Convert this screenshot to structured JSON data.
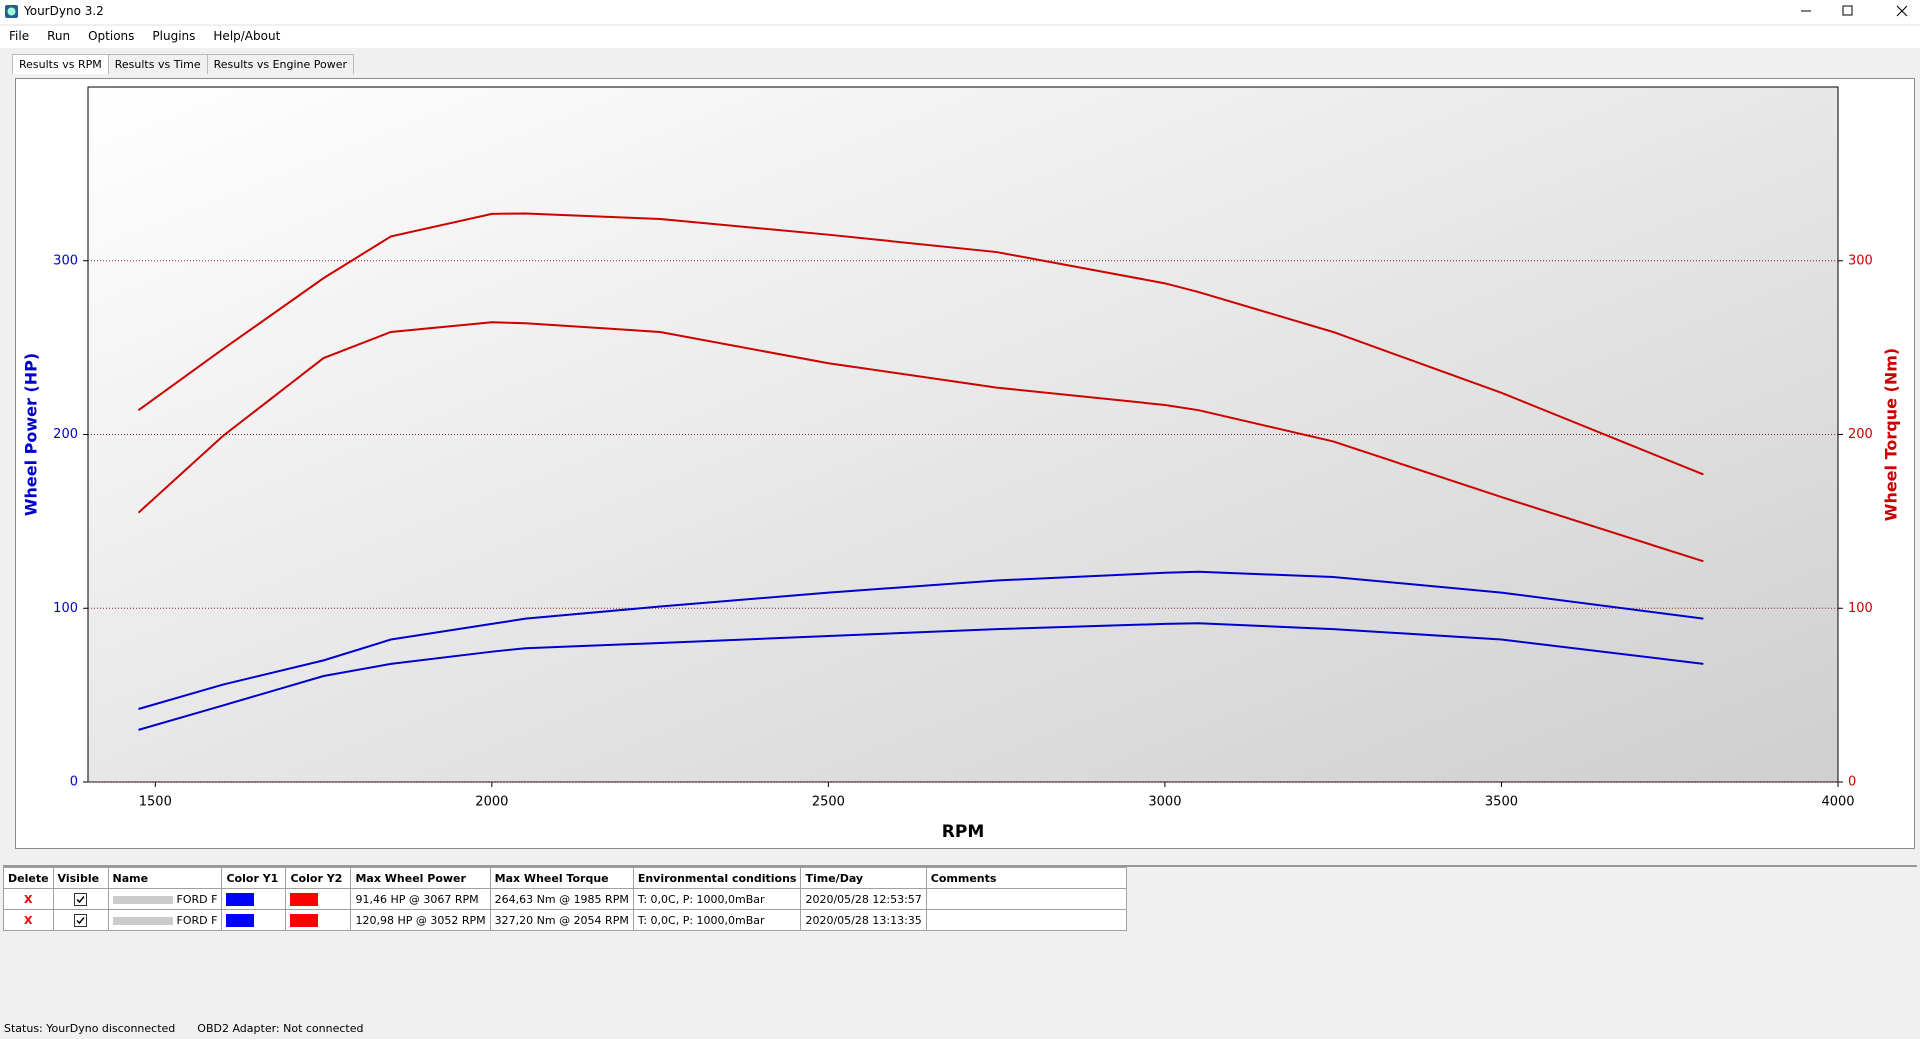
{
  "window": {
    "title": "YourDyno 3.2"
  },
  "menu": [
    "File",
    "Run",
    "Options",
    "Plugins",
    "Help/About"
  ],
  "tabs": [
    "Results vs RPM",
    "Results vs Time",
    "Results vs Engine Power"
  ],
  "chart_data": {
    "type": "line",
    "x_label": "RPM",
    "y_label": "Wheel Power (HP)",
    "y2_label": "Wheel Torque (Nm)",
    "xlim": [
      1400,
      4000
    ],
    "xticks": [
      1500,
      2000,
      2500,
      3000,
      3500,
      4000
    ],
    "ylim": [
      0,
      400
    ],
    "yticks": [
      0,
      100,
      200,
      300
    ],
    "y2lim": [
      0,
      400
    ],
    "y2ticks": [
      0,
      100,
      200,
      300
    ],
    "grid": true,
    "y_label_color": "#0000cc",
    "y2_label_color": "#cc0000",
    "x": [
      1475,
      1600,
      1750,
      1850,
      2000,
      2050,
      2250,
      2500,
      2750,
      3000,
      3050,
      3250,
      3500,
      3800
    ],
    "series": [
      {
        "color": "#0000cc",
        "axis": "y",
        "values": [
          30,
          44,
          61,
          68,
          75,
          77,
          80,
          84,
          88,
          91,
          91.4,
          88,
          82,
          68
        ]
      },
      {
        "color": "#cc0000",
        "axis": "y2",
        "values": [
          155,
          199,
          244,
          259,
          264.6,
          264,
          259,
          241,
          227,
          217,
          214,
          196,
          164,
          127
        ]
      },
      {
        "color": "#0000cc",
        "axis": "y",
        "values": [
          42,
          56,
          70,
          82,
          91,
          94,
          101,
          109,
          116,
          120.4,
          121,
          118,
          109,
          94
        ]
      },
      {
        "color": "#cc0000",
        "axis": "y2",
        "values": [
          214,
          249,
          290,
          314,
          327,
          327.2,
          324,
          315,
          305,
          287,
          282,
          259,
          224,
          177
        ]
      }
    ]
  },
  "table": {
    "columns": [
      "Delete",
      "Visible",
      "Name",
      "Color Y1",
      "Color Y2",
      "Max Wheel Power",
      "Max Wheel Torque",
      "Environmental conditions",
      "Time/Day",
      "Comments"
    ],
    "rows": [
      {
        "delete": "X",
        "visible": true,
        "name": "FORD F",
        "color_y1": "#0000ff",
        "color_y2": "#ff0000",
        "max_power": "91,46 HP @ 3067 RPM",
        "max_torque": "264,63 Nm @ 1985 RPM",
        "env": "T: 0,0C, P: 1000,0mBar",
        "time": "2020/05/28 12:53:57"
      },
      {
        "delete": "X",
        "visible": true,
        "name": "FORD F",
        "color_y1": "#0000ff",
        "color_y2": "#ff0000",
        "max_power": "120,98 HP @ 3052 RPM",
        "max_torque": "327,20 Nm @ 2054 RPM",
        "env": "T: 0,0C, P: 1000,0mBar",
        "time": "2020/05/28 13:13:35"
      }
    ]
  },
  "status": [
    "Status: YourDyno disconnected",
    "OBD2 Adapter: Not connected"
  ]
}
